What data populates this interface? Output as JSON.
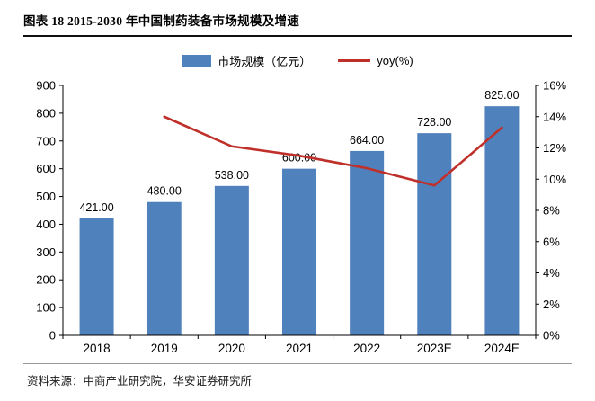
{
  "header": {
    "title": "图表 18 2015-2030 年中国制药装备市场规模及增速"
  },
  "footer": {
    "source": "资料来源：中商产业研究院，华安证券研究所"
  },
  "chart_data": {
    "type": "bar",
    "title": "图表 18 2015-2030 年中国制药装备市场规模及增速",
    "categories": [
      "2018",
      "2019",
      "2020",
      "2021",
      "2022",
      "2023E",
      "2024E"
    ],
    "series": [
      {
        "name": "市场规模（亿元）",
        "type": "bar",
        "axis": "left",
        "color": "#4f81bd",
        "values": [
          421,
          480,
          538,
          600,
          664,
          728,
          825
        ],
        "labels": [
          "421.00",
          "480.00",
          "538.00",
          "600.00",
          "664.00",
          "728.00",
          "825.00"
        ]
      },
      {
        "name": "yoy(%)",
        "type": "line",
        "axis": "right",
        "color": "#c0302a",
        "values": [
          null,
          14.0,
          12.1,
          11.5,
          10.7,
          9.6,
          13.3
        ]
      }
    ],
    "left_axis": {
      "min": 0,
      "max": 900,
      "step": 100,
      "ticks": [
        "0",
        "100",
        "200",
        "300",
        "400",
        "500",
        "600",
        "700",
        "800",
        "900"
      ]
    },
    "right_axis": {
      "min": 0,
      "max": 16,
      "step": 2,
      "ticks": [
        "0%",
        "2%",
        "4%",
        "6%",
        "8%",
        "10%",
        "12%",
        "14%",
        "16%"
      ]
    },
    "legend_position": "top",
    "grid": false
  }
}
